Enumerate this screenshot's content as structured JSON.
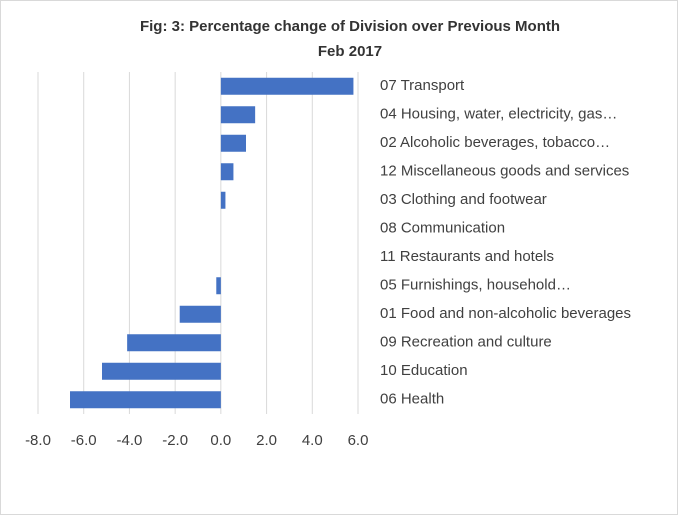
{
  "chart_data": {
    "type": "barh",
    "title": "Fig: 3: Percentage change of Division over Previous Month",
    "subtitle": "Feb 2017",
    "categories": [
      "07 Transport",
      "04 Housing, water, electricity, gas…",
      "02 Alcoholic beverages, tobacco…",
      "12 Miscellaneous goods and services",
      "03 Clothing and footwear",
      "08 Communication",
      "11 Restaurants and hotels",
      "05 Furnishings, household…",
      "01 Food and non-alcoholic beverages",
      "09 Recreation and culture",
      "10 Education",
      "06 Health"
    ],
    "values": [
      5.8,
      1.5,
      1.1,
      0.55,
      0.2,
      0,
      0,
      -0.2,
      -1.8,
      -4.1,
      -5.2,
      -6.6
    ],
    "color": "#4472c4",
    "xlim": [
      -8,
      6
    ],
    "xticks": [
      {
        "value": -8,
        "label": "-8.0"
      },
      {
        "value": -6,
        "label": "-6.0"
      },
      {
        "value": -4,
        "label": "-4.0"
      },
      {
        "value": -2,
        "label": "-2.0"
      },
      {
        "value": 0,
        "label": "0.0"
      },
      {
        "value": 2,
        "label": "2.0"
      },
      {
        "value": 4,
        "label": "4.0"
      },
      {
        "value": 6,
        "label": "6.0"
      }
    ],
    "grid": true
  }
}
